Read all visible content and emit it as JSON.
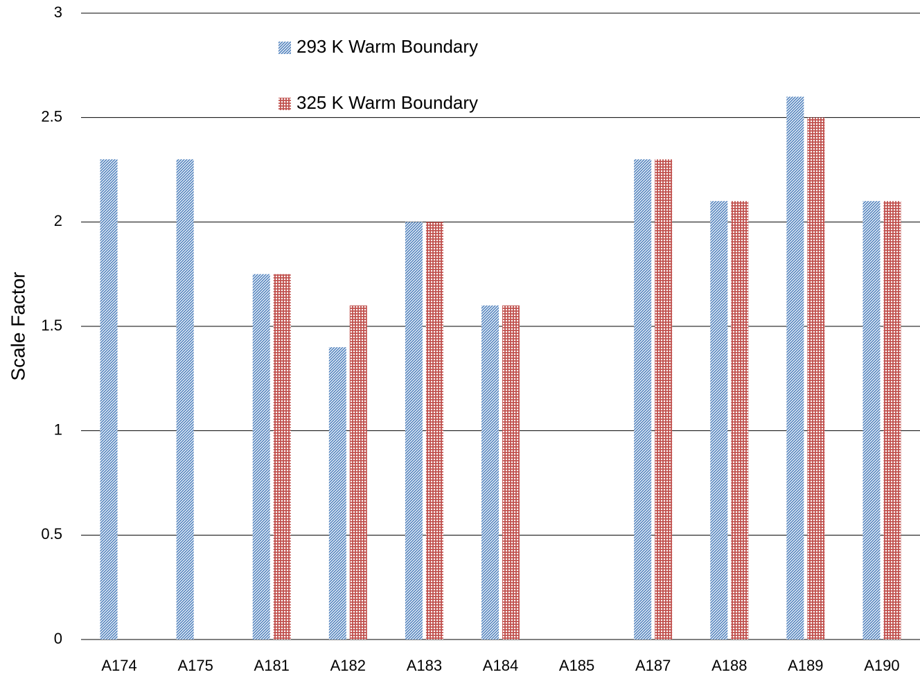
{
  "chart_data": {
    "type": "bar",
    "y_label": "Scale Factor",
    "categories": [
      "A174",
      "A175",
      "A181",
      "A182",
      "A183",
      "A184",
      "A185",
      "A187",
      "A188",
      "A189",
      "A190"
    ],
    "series": [
      {
        "name": "293 K Warm Boundary",
        "color": "#4f81bd",
        "pattern": "diagonal",
        "values": [
          2.3,
          2.3,
          1.75,
          1.4,
          2.0,
          1.6,
          null,
          2.3,
          2.1,
          2.6,
          2.1
        ]
      },
      {
        "name": "325 K Warm Boundary",
        "color": "#c0504d",
        "pattern": "crosshatch",
        "values": [
          null,
          null,
          1.75,
          1.6,
          2.0,
          1.6,
          null,
          2.3,
          2.1,
          2.5,
          2.1
        ]
      }
    ],
    "ylim": [
      0,
      3
    ],
    "yticks": [
      0,
      0.5,
      1,
      1.5,
      2,
      2.5,
      3
    ],
    "grid": true,
    "legend": "upper center"
  }
}
